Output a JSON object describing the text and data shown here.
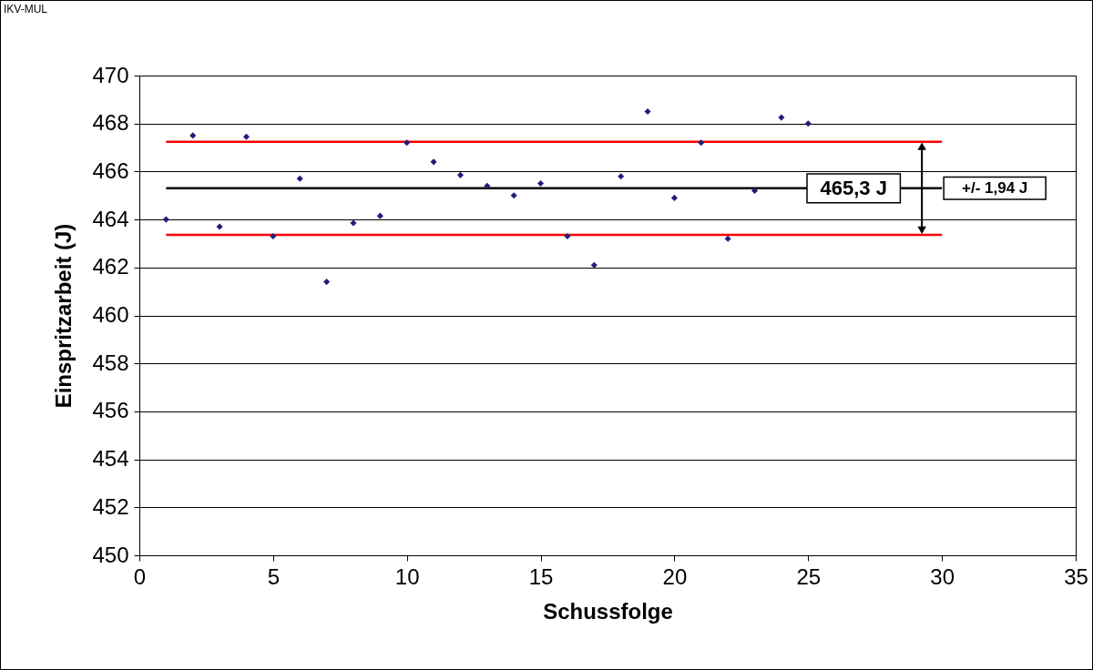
{
  "chart_data": {
    "type": "scatter",
    "xlabel": "Schussfolge",
    "ylabel": "Einspritzarbeit (J)",
    "xlim": [
      0,
      35
    ],
    "xticks": [
      0,
      5,
      10,
      15,
      20,
      25,
      30,
      35
    ],
    "ylim": [
      450,
      470
    ],
    "yticks": [
      450,
      452,
      454,
      456,
      458,
      460,
      462,
      464,
      466,
      468,
      470
    ],
    "grid": "y",
    "marker": "diamond",
    "series": [
      {
        "color": "#1f1f7a",
        "x": [
          1,
          2,
          3,
          4,
          5,
          6,
          7,
          8,
          9,
          10,
          11,
          12,
          13,
          14,
          15,
          16,
          17,
          18,
          19,
          20,
          21,
          22,
          23,
          24,
          25
        ],
        "values": [
          464.0,
          467.5,
          463.7,
          467.45,
          463.3,
          465.7,
          461.4,
          463.85,
          464.15,
          467.2,
          466.4,
          465.85,
          465.4,
          465.0,
          465.5,
          463.3,
          462.1,
          465.8,
          468.5,
          464.9,
          467.2,
          463.2,
          465.2,
          468.25,
          468.0
        ]
      },
      {
        "type": "line",
        "marker": "none",
        "color": "#ff0000",
        "x": [
          1,
          30
        ],
        "values": [
          467.24,
          467.24
        ]
      },
      {
        "type": "line",
        "marker": "none",
        "color": "#000000",
        "x": [
          1,
          30
        ],
        "values": [
          465.3,
          465.3
        ]
      },
      {
        "type": "line",
        "marker": "none",
        "color": "#ff0000",
        "x": [
          1,
          30
        ],
        "values": [
          463.36,
          463.36
        ]
      }
    ],
    "annotations": [
      "IKV-MUL",
      {
        "text": "465,3 J",
        "x": 26.7,
        "y": 465.3
      },
      "+/- 1,94 J"
    ]
  }
}
